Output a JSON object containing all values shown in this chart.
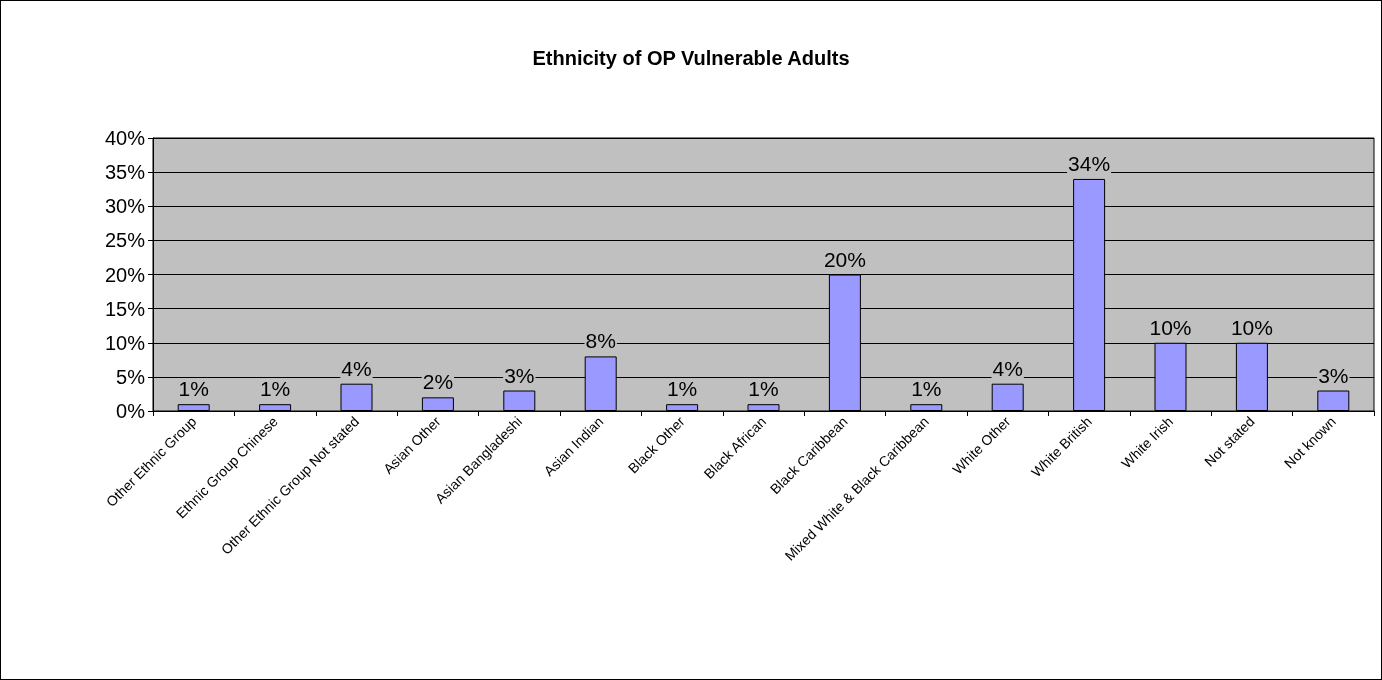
{
  "chart_data": {
    "type": "bar",
    "title": "Ethnicity of OP Vulnerable Adults",
    "categories": [
      "Other Ethnic Group",
      "Ethnic Group Chinese",
      "Other Ethnic Group Not stated",
      "Asian Other",
      "Asian Bangladeshi",
      "Asian Indian",
      "Black Other",
      "Black African",
      "Black Caribbean",
      "Mixed White & Black Caribbean",
      "White Other",
      "White British",
      "White Irish",
      "Not stated",
      "Not known"
    ],
    "values": [
      1,
      1,
      4,
      2,
      3,
      8,
      1,
      1,
      20,
      1,
      4,
      34,
      10,
      10,
      3
    ],
    "value_labels": [
      "1%",
      "1%",
      "4%",
      "2%",
      "3%",
      "8%",
      "1%",
      "1%",
      "20%",
      "1%",
      "4%",
      "34%",
      "10%",
      "10%",
      "3%"
    ],
    "color": "#9999ff",
    "ylim": [
      0,
      40
    ],
    "yticks": [
      {
        "value": 0,
        "label": "0%"
      },
      {
        "value": 5,
        "label": "5%"
      },
      {
        "value": 10,
        "label": "10%"
      },
      {
        "value": 15,
        "label": "15%"
      },
      {
        "value": 20,
        "label": "20%"
      },
      {
        "value": 25,
        "label": "25%"
      },
      {
        "value": 30,
        "label": "30%"
      },
      {
        "value": 35,
        "label": "35%"
      },
      {
        "value": 40,
        "label": "40%"
      }
    ],
    "grid": "y"
  }
}
